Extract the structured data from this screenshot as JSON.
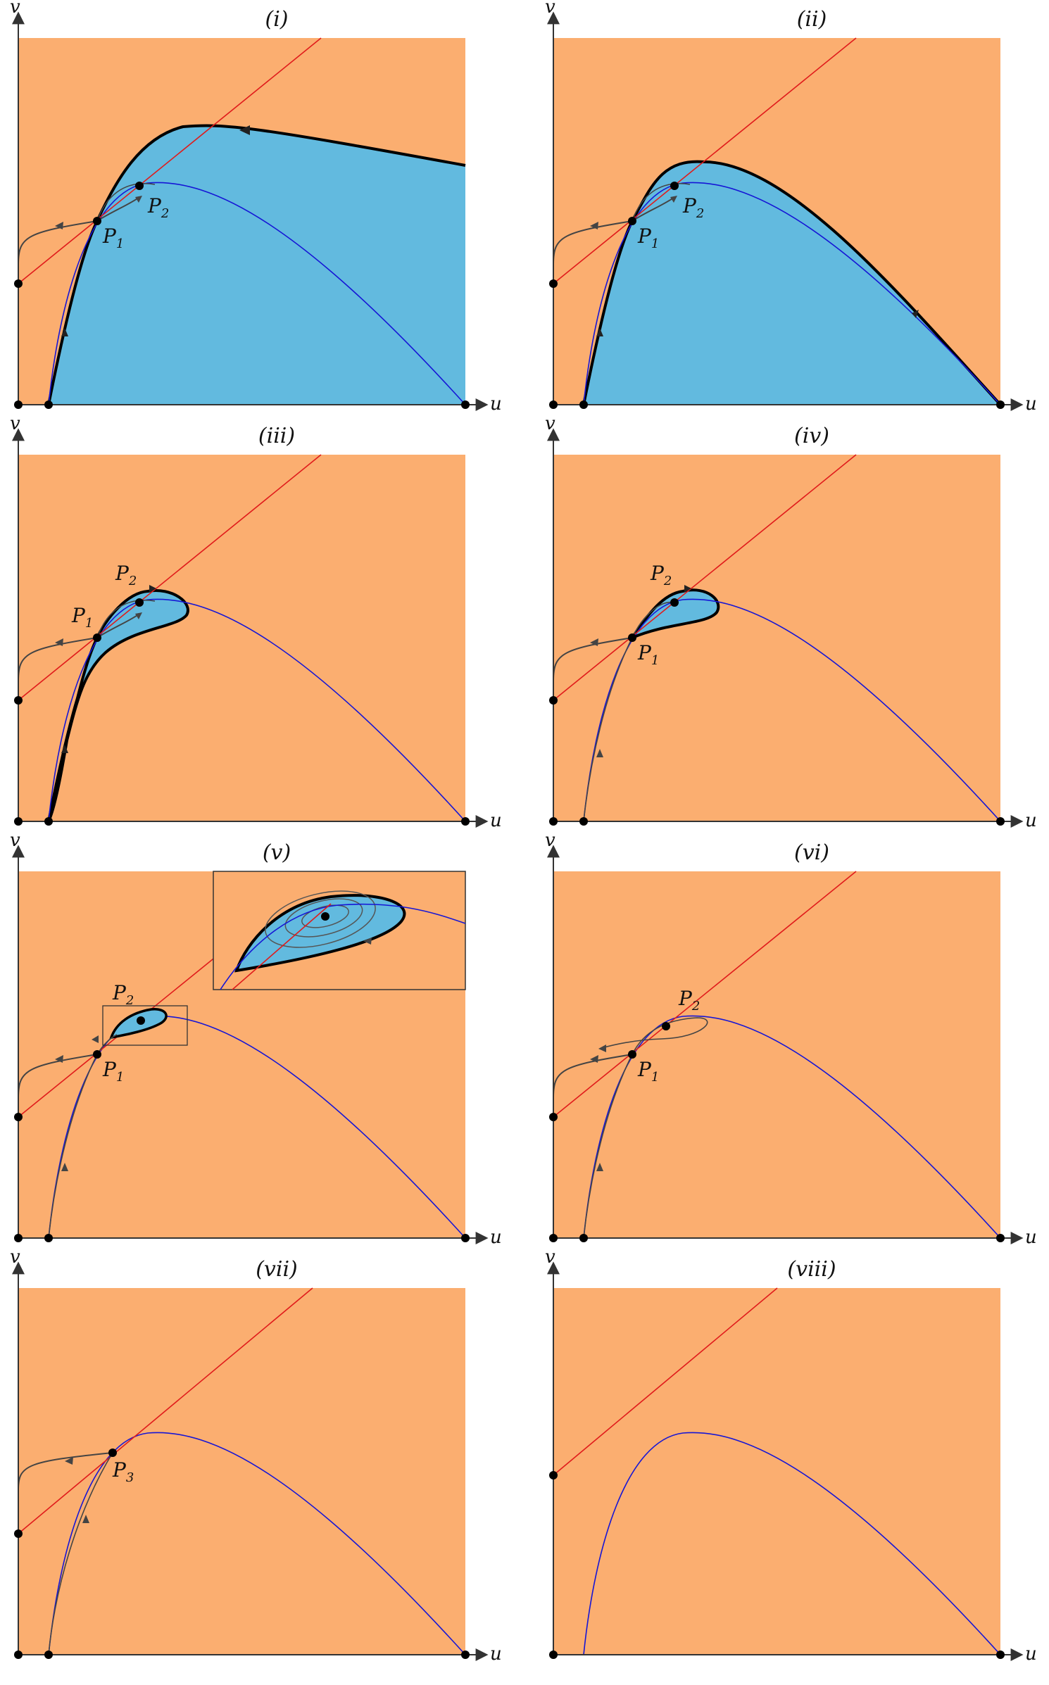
{
  "axis_labels": {
    "x": "u",
    "y": "v"
  },
  "colors": {
    "region_outside": "#fbae70",
    "region_inside": "#62badf",
    "prey_nullcline": "#1515d6",
    "predator_nullcline": "#e01b1b",
    "trajectory": "#444444",
    "boundary": "#000000"
  },
  "panels": [
    {
      "label": "(i)",
      "points": [
        {
          "letter": "P",
          "index": "1"
        },
        {
          "letter": "P",
          "index": "2"
        }
      ]
    },
    {
      "label": "(ii)",
      "points": [
        {
          "letter": "P",
          "index": "1"
        },
        {
          "letter": "P",
          "index": "2"
        }
      ]
    },
    {
      "label": "(iii)",
      "points": [
        {
          "letter": "P",
          "index": "1"
        },
        {
          "letter": "P",
          "index": "2"
        }
      ]
    },
    {
      "label": "(iv)",
      "points": [
        {
          "letter": "P",
          "index": "1"
        },
        {
          "letter": "P",
          "index": "2"
        }
      ]
    },
    {
      "label": "(v)",
      "points": [
        {
          "letter": "P",
          "index": "1"
        },
        {
          "letter": "P",
          "index": "2"
        }
      ]
    },
    {
      "label": "(vi)",
      "points": [
        {
          "letter": "P",
          "index": "1"
        },
        {
          "letter": "P",
          "index": "2"
        }
      ]
    },
    {
      "label": "(vii)",
      "points": [
        {
          "letter": "P",
          "index": "3"
        }
      ]
    },
    {
      "label": "(viii)",
      "points": []
    }
  ]
}
